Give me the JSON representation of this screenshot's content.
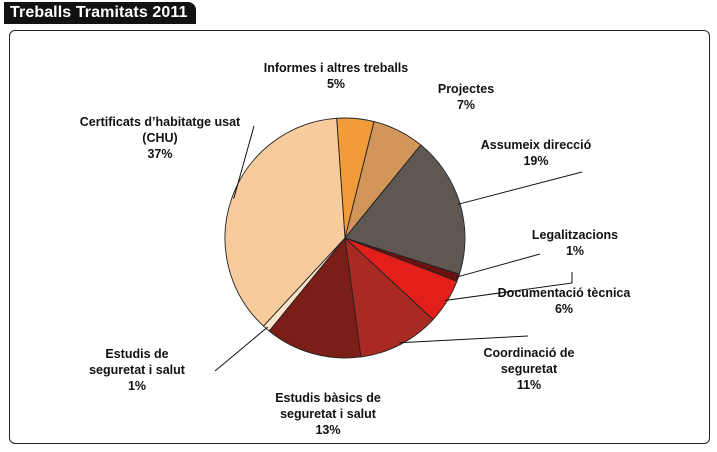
{
  "title": "Treballs  Tramitats 2011",
  "chart_data": {
    "type": "pie",
    "title": "Treballs  Tramitats 2011",
    "start_angle_deg": -94,
    "slices": [
      {
        "name": "Informes i altres treballs",
        "label_lines": [
          "Informes i altres treballs"
        ],
        "percent_label": "5%",
        "value": 5,
        "color": "#f29b3b"
      },
      {
        "name": "Projectes",
        "label_lines": [
          "Projectes"
        ],
        "percent_label": "7%",
        "value": 7,
        "color": "#d2955a"
      },
      {
        "name": "Assumeix direcció",
        "label_lines": [
          "Assumeix direcció"
        ],
        "percent_label": "19%",
        "value": 19,
        "color": "#5f5751"
      },
      {
        "name": "Legalitzacions",
        "label_lines": [
          "Legalitzacions"
        ],
        "percent_label": "1%",
        "value": 1,
        "color": "#6b1210"
      },
      {
        "name": "Documentació tècnica",
        "label_lines": [
          "Documentació tècnica"
        ],
        "percent_label": "6%",
        "value": 6,
        "color": "#e31f1c"
      },
      {
        "name": "Coordinació de seguretat",
        "label_lines": [
          "Coordinació de",
          "seguretat"
        ],
        "percent_label": "11%",
        "value": 11,
        "color": "#a82a22"
      },
      {
        "name": "Estudis bàsics de seguretat i salut",
        "label_lines": [
          "Estudis bàsics de",
          "seguretat i salut"
        ],
        "percent_label": "13%",
        "value": 13,
        "color": "#7b1e17"
      },
      {
        "name": "Estudis de seguretat i salut",
        "label_lines": [
          "Estudis de",
          "seguretat i salut"
        ],
        "percent_label": "1%",
        "value": 1,
        "color": "#fbe3c8"
      },
      {
        "name": "Certificats d’habitatge usat (CHU)",
        "label_lines": [
          "Certificats d’habitatge usat",
          "(CHU)"
        ],
        "percent_label": "37%",
        "value": 37,
        "color": "#f7cb9c"
      }
    ]
  }
}
